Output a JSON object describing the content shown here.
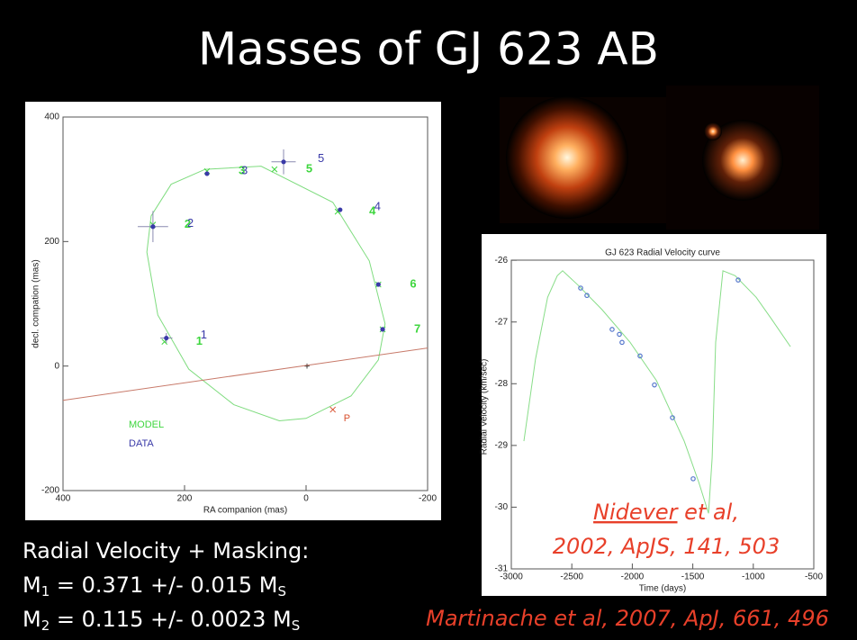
{
  "title": "Masses of GJ 623 AB",
  "chart_data": [
    {
      "type": "scatter",
      "xlabel": "RA companion (mas)",
      "ylabel": "decl. compation (mas)",
      "xlim": [
        400,
        -200
      ],
      "ylim": [
        -200,
        400
      ],
      "xticks": [
        400,
        200,
        0,
        -200
      ],
      "yticks": [
        -200,
        0,
        200,
        400
      ],
      "orbit": {
        "color": "#7fdc7f",
        "x": [
          166,
          74,
          -44,
          -104,
          -130,
          -119,
          -74,
          0,
          44,
          119,
          193,
          244,
          262,
          255,
          222,
          166
        ],
        "y": [
          316,
          321,
          263,
          169,
          68,
          10,
          -48,
          -84,
          -88,
          -62,
          -5,
          82,
          183,
          241,
          292,
          316
        ]
      },
      "line_of_nodes": {
        "color": "#c87a6a",
        "x": [
          400,
          -200
        ],
        "y": [
          -55,
          29
        ]
      },
      "series": [
        {
          "name": "MODEL",
          "color": "#3ed63e",
          "marker": "x",
          "x": [
            233,
            252,
            163,
            -52,
            52,
            -119,
            -126
          ],
          "y": [
            39,
            227,
            313,
            248,
            316,
            131,
            59
          ],
          "labels": [
            "1",
            "2",
            "3",
            "4",
            "5",
            "6",
            "7"
          ]
        },
        {
          "name": "DATA",
          "color": "#3a3aa8",
          "marker": "circle",
          "x": [
            230,
            252,
            163,
            -56,
            37,
            -119,
            -126
          ],
          "y": [
            45,
            224,
            309,
            251,
            328,
            131,
            59
          ],
          "xerr": [
            10,
            25,
            null,
            null,
            20,
            null,
            null
          ],
          "yerr": [
            8,
            25,
            null,
            null,
            20,
            null,
            null
          ],
          "labels": [
            "1",
            "2",
            "3",
            "4",
            "5",
            null,
            null
          ]
        },
        {
          "name": "P",
          "color": "#d8502e",
          "marker": "x",
          "x": [
            -44
          ],
          "y": [
            -70
          ]
        }
      ]
    },
    {
      "type": "line",
      "title": "GJ 623 Radial Velocity curve",
      "xlabel": "Time (days)",
      "ylabel": "Radial Velocity (km/sec)",
      "xlim": [
        -3000,
        -500
      ],
      "ylim": [
        -31,
        -25.75
      ],
      "xticks": [
        -3000,
        -2500,
        -2000,
        -1500,
        -1000,
        -500
      ],
      "yticks": [
        -31,
        -30,
        -29,
        -28,
        -27,
        -26
      ],
      "model": {
        "color": "#88dd88",
        "x": [
          -2896,
          -2800,
          -2700,
          -2620,
          -2576,
          -2450,
          -2250,
          -2018,
          -1800,
          -1571,
          -1450,
          -1370,
          -1340,
          -1311,
          -1251,
          -1150,
          -976,
          -850,
          -693
        ],
        "y": [
          -28.93,
          -27.6,
          -26.6,
          -26.25,
          -26.17,
          -26.4,
          -26.8,
          -27.33,
          -27.95,
          -28.93,
          -29.6,
          -30.1,
          -29.2,
          -27.33,
          -26.17,
          -26.25,
          -26.6,
          -26.95,
          -27.4
        ]
      },
      "data": {
        "color": "#5577cc",
        "x": [
          -2427,
          -2375,
          -2167,
          -2107,
          -2085,
          -1936,
          -1817,
          -1668,
          -1497,
          -1125
        ],
        "y": [
          -26.45,
          -26.57,
          -27.12,
          -27.2,
          -27.33,
          -27.55,
          -28.02,
          -28.55,
          -29.54,
          -26.32
        ]
      }
    }
  ],
  "summary": {
    "heading": "Radial Velocity + Masking:",
    "masses": [
      {
        "symbol": "M",
        "sub": "1",
        "text": " = 0.371 +/- 0.015 M",
        "unit_sub": "S"
      },
      {
        "symbol": "M",
        "sub": "2",
        "text": " = 0.115 +/- 0.0023 M",
        "unit_sub": "S"
      }
    ]
  },
  "citations": {
    "rv": {
      "author": "Nidever",
      "rest": " et al,",
      "ref": "2002, ApJS, 141, 503"
    },
    "imaging": "Martinache et al, 2007, ApJ, 661, 496"
  }
}
